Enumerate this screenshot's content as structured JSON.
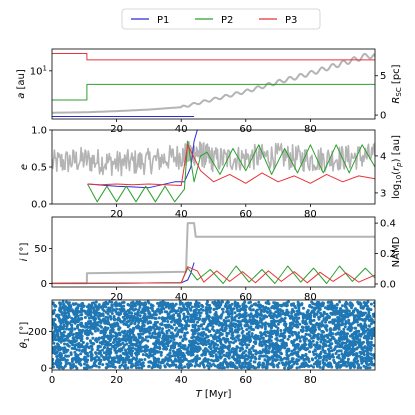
{
  "legend": {
    "placement": "top-center",
    "entries": [
      {
        "name": "P1",
        "color": "#2b2bd6"
      },
      {
        "name": "P2",
        "color": "#2ca02c"
      },
      {
        "name": "P3",
        "color": "#e8333a"
      }
    ]
  },
  "colors": {
    "background_series": "#b4b4b4",
    "scatter": "#1f77b4"
  },
  "chart_data": [
    {
      "type": "line",
      "ylabel": "a [au]",
      "right_ylabel": "R_SC [pc]",
      "xlim": [
        0,
        100
      ],
      "yscale": "log",
      "ylim": [
        1.45,
        24
      ],
      "right_ylim": [
        -0.5,
        8.4
      ],
      "xticks": [
        20,
        40,
        60,
        80
      ],
      "yticks": [
        {
          "value": 10,
          "label": "10^1"
        }
      ],
      "right_yticks": [
        0,
        5
      ],
      "series": [
        {
          "name": "P1",
          "axis": "left",
          "x": [
            0,
            44
          ],
          "values": [
            1.6,
            1.6
          ]
        },
        {
          "name": "P2",
          "axis": "left",
          "x": [
            0,
            10.8,
            10.8,
            100
          ],
          "values": [
            3.1,
            3.1,
            5.8,
            5.8
          ]
        },
        {
          "name": "P3",
          "axis": "left",
          "x": [
            0,
            10.8,
            10.8,
            100
          ],
          "values": [
            20,
            20,
            15.5,
            15.5
          ]
        },
        {
          "axis": "right",
          "x": [
            0,
            10,
            20,
            30,
            40,
            50,
            60,
            70,
            80,
            90,
            98,
            100
          ],
          "values": [
            0.3,
            0.35,
            0.5,
            0.7,
            1.0,
            2.0,
            3.0,
            4.2,
            5.3,
            6.6,
            7.6,
            7.4
          ]
        }
      ]
    },
    {
      "type": "line",
      "ylabel": "e",
      "right_ylabel": "log10(r_p) [au]",
      "xlim": [
        0,
        100
      ],
      "ylim": [
        0,
        1.0
      ],
      "right_ylim": [
        2.7,
        4.7
      ],
      "xticks": [
        20,
        40,
        60,
        80
      ],
      "yticks": [
        0.0,
        0.5,
        1.0
      ],
      "right_yticks": [
        3,
        4
      ],
      "series": [
        {
          "name": "P1",
          "axis": "left",
          "x": [
            11,
            20,
            30,
            38,
            41,
            42,
            43,
            44,
            45
          ],
          "values": [
            0.27,
            0.24,
            0.22,
            0.3,
            0.3,
            0.4,
            0.5,
            0.85,
            1.0
          ]
        },
        {
          "name": "P2",
          "axis": "left",
          "x": [
            11,
            14,
            17,
            20,
            23,
            26,
            29,
            32,
            35,
            38,
            41,
            42,
            44,
            46,
            48,
            52,
            56,
            60,
            64,
            68,
            72,
            76,
            80,
            84,
            88,
            92,
            96,
            100
          ],
          "values": [
            0.27,
            0.03,
            0.24,
            0.03,
            0.24,
            0.03,
            0.24,
            0.03,
            0.24,
            0.03,
            0.2,
            0.85,
            0.3,
            0.65,
            0.7,
            0.4,
            0.75,
            0.45,
            0.8,
            0.4,
            0.75,
            0.42,
            0.8,
            0.42,
            0.8,
            0.42,
            0.8,
            0.5
          ]
        },
        {
          "name": "P3",
          "axis": "left",
          "x": [
            11,
            15,
            20,
            25,
            30,
            35,
            40,
            42,
            46,
            50,
            55,
            60,
            65,
            70,
            75,
            80,
            85,
            90,
            95,
            100
          ],
          "values": [
            0.27,
            0.26,
            0.27,
            0.26,
            0.27,
            0.26,
            0.25,
            0.8,
            0.45,
            0.3,
            0.4,
            0.28,
            0.42,
            0.3,
            0.38,
            0.28,
            0.4,
            0.3,
            0.38,
            0.34
          ]
        },
        {
          "axis": "right",
          "x": [
            0,
            10,
            20,
            30,
            40,
            45,
            50,
            60,
            70,
            80,
            90,
            100
          ],
          "values": [
            3.8,
            3.9,
            3.8,
            3.85,
            4.0,
            4.1,
            3.9,
            3.95,
            4.0,
            3.9,
            3.95,
            4.0
          ]
        }
      ]
    },
    {
      "type": "line",
      "ylabel": "i [°]",
      "right_ylabel": "NAMD",
      "xlim": [
        0,
        100
      ],
      "ylim": [
        -5,
        95
      ],
      "right_ylim": [
        -0.02,
        0.44
      ],
      "xticks": [
        20,
        40,
        60,
        80
      ],
      "yticks": [
        0,
        50
      ],
      "right_yticks": [
        0.0,
        0.2,
        0.4
      ],
      "series": [
        {
          "name": "P1",
          "axis": "left",
          "x": [
            0,
            40,
            42,
            43,
            44
          ],
          "values": [
            0,
            1,
            5,
            15,
            30
          ]
        },
        {
          "name": "P2",
          "axis": "left",
          "x": [
            0,
            40,
            42,
            45,
            49,
            53,
            57,
            61,
            65,
            69,
            73,
            77,
            81,
            85,
            89,
            93,
            97,
            100
          ],
          "values": [
            0,
            1,
            22,
            5,
            20,
            0,
            25,
            2,
            20,
            0,
            25,
            2,
            22,
            0,
            25,
            3,
            22,
            8
          ]
        },
        {
          "name": "P3",
          "axis": "left",
          "x": [
            0,
            40,
            42,
            45,
            47,
            51,
            55,
            59,
            63,
            67,
            71,
            75,
            79,
            83,
            87,
            91,
            95,
            100
          ],
          "values": [
            0,
            1,
            24,
            18,
            2,
            18,
            3,
            17,
            1,
            18,
            3,
            17,
            1,
            16,
            3,
            15,
            2,
            12
          ]
        },
        {
          "axis": "right",
          "x": [
            0,
            10.8,
            10.8,
            41.5,
            42,
            44,
            44.5,
            100
          ],
          "values": [
            0.005,
            0.005,
            0.07,
            0.08,
            0.4,
            0.4,
            0.31,
            0.31
          ]
        }
      ]
    },
    {
      "type": "scatter",
      "ylabel": "θ_1 [°]",
      "xlabel": "T [Myr]",
      "xlim": [
        0,
        100
      ],
      "ylim": [
        -10,
        370
      ],
      "xticks": [
        0,
        20,
        40,
        60,
        80
      ],
      "yticks": [
        0,
        200
      ],
      "sample": {
        "x_range": [
          0,
          100
        ],
        "y_range": [
          0,
          360
        ],
        "density": "uniform"
      }
    }
  ]
}
